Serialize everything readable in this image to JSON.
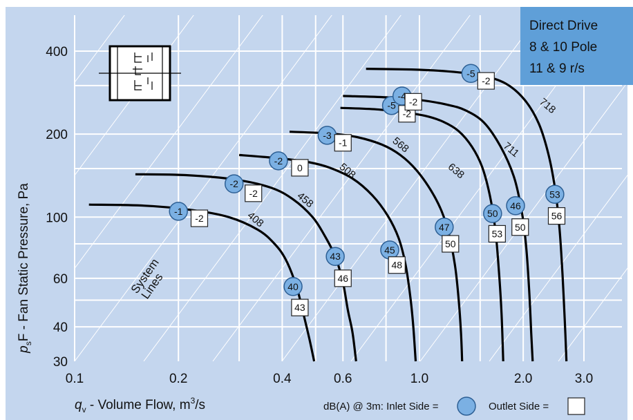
{
  "chart_data": {
    "type": "line",
    "title_lines": [
      "Direct Drive",
      "8 & 10 Pole",
      "11 & 9  r/s"
    ],
    "xlabel": {
      "base": "q",
      "sub": "v",
      "text": " - Volume Flow, m",
      "sup": "3",
      "tail": "/s"
    },
    "ylabel": {
      "base": "p",
      "sub": "s",
      "text": "F - Fan Static Pressure, Pa"
    },
    "x_scale": "log",
    "y_scale": "log",
    "xlim": [
      0.1,
      3.0
    ],
    "ylim": [
      30,
      400
    ],
    "x_ticks": [
      {
        "v": 0.1,
        "label": "0.1"
      },
      {
        "v": 0.2,
        "label": "0.2"
      },
      {
        "v": 0.4,
        "label": "0.4"
      },
      {
        "v": 0.6,
        "label": "0.6"
      },
      {
        "v": 1.0,
        "label": "1.0"
      },
      {
        "v": 2.0,
        "label": "2.0"
      },
      {
        "v": 3.0,
        "label": "3.0"
      }
    ],
    "y_ticks": [
      {
        "v": 30,
        "label": "30"
      },
      {
        "v": 40,
        "label": "40"
      },
      {
        "v": 60,
        "label": "60"
      },
      {
        "v": 100,
        "label": "100"
      },
      {
        "v": 200,
        "label": "200"
      },
      {
        "v": 400,
        "label": "400"
      }
    ],
    "x_grid": [
      0.2,
      0.3,
      0.4,
      0.5,
      0.6,
      0.8,
      1.0,
      1.5,
      2.0,
      3.0
    ],
    "y_grid": [
      40,
      50,
      60,
      80,
      100,
      150,
      200,
      300,
      400
    ],
    "system_lines_label": [
      "System",
      "Lines"
    ],
    "series": [
      {
        "label": "408",
        "label_at": [
          0.33,
          96
        ],
        "points": [
          [
            0.11,
            111
          ],
          [
            0.16,
            110
          ],
          [
            0.22,
            106
          ],
          [
            0.28,
            100
          ],
          [
            0.34,
            90
          ],
          [
            0.38,
            80
          ],
          [
            0.41,
            70
          ],
          [
            0.44,
            56
          ],
          [
            0.46,
            45
          ],
          [
            0.48,
            36
          ],
          [
            0.495,
            30
          ]
        ],
        "inlet": [
          {
            "x": 0.2,
            "y": 105,
            "v": "-1"
          },
          {
            "x": 0.43,
            "y": 56,
            "v": "40"
          }
        ],
        "outlet": [
          {
            "x": 0.23,
            "y": 99,
            "v": "-2"
          },
          {
            "x": 0.45,
            "y": 47,
            "v": "43"
          }
        ]
      },
      {
        "label": "458",
        "label_at": [
          0.46,
          113
        ],
        "points": [
          [
            0.15,
            143
          ],
          [
            0.21,
            142
          ],
          [
            0.29,
            137
          ],
          [
            0.37,
            128
          ],
          [
            0.43,
            116
          ],
          [
            0.49,
            100
          ],
          [
            0.53,
            86
          ],
          [
            0.57,
            72
          ],
          [
            0.6,
            58
          ],
          [
            0.62,
            46
          ],
          [
            0.64,
            38
          ],
          [
            0.655,
            30
          ]
        ],
        "inlet": [
          {
            "x": 0.29,
            "y": 132,
            "v": "-2"
          },
          {
            "x": 0.57,
            "y": 72,
            "v": "43"
          }
        ],
        "outlet": [
          {
            "x": 0.33,
            "y": 122,
            "v": "-2"
          },
          {
            "x": 0.6,
            "y": 60,
            "v": "46"
          }
        ]
      },
      {
        "label": "508",
        "label_at": [
          0.61,
          144
        ],
        "points": [
          [
            0.3,
            168
          ],
          [
            0.4,
            163
          ],
          [
            0.48,
            158
          ],
          [
            0.55,
            151
          ],
          [
            0.64,
            138
          ],
          [
            0.73,
            120
          ],
          [
            0.81,
            101
          ],
          [
            0.87,
            84
          ],
          [
            0.91,
            68
          ],
          [
            0.94,
            52
          ],
          [
            0.96,
            40
          ],
          [
            0.975,
            30
          ]
        ],
        "inlet": [
          {
            "x": 0.39,
            "y": 160,
            "v": "-2"
          },
          {
            "x": 0.82,
            "y": 76,
            "v": "45"
          }
        ],
        "outlet": [
          {
            "x": 0.45,
            "y": 151,
            "v": "0"
          },
          {
            "x": 0.86,
            "y": 67,
            "v": "48"
          }
        ]
      },
      {
        "label": "568",
        "label_at": [
          0.87,
          179
        ],
        "points": [
          [
            0.42,
            204
          ],
          [
            0.55,
            201
          ],
          [
            0.66,
            195
          ],
          [
            0.78,
            183
          ],
          [
            0.88,
            168
          ],
          [
            0.98,
            148
          ],
          [
            1.08,
            125
          ],
          [
            1.16,
            105
          ],
          [
            1.22,
            86
          ],
          [
            1.27,
            66
          ],
          [
            1.3,
            50
          ],
          [
            1.32,
            38
          ],
          [
            1.33,
            30
          ]
        ],
        "inlet": [
          {
            "x": 0.54,
            "y": 198,
            "v": "-3"
          },
          {
            "x": 1.18,
            "y": 92,
            "v": "47"
          }
        ],
        "outlet": [
          {
            "x": 0.6,
            "y": 186,
            "v": "-1"
          },
          {
            "x": 1.23,
            "y": 80,
            "v": "50"
          }
        ]
      },
      {
        "label": "638",
        "label_at": [
          1.26,
          144
        ],
        "points": [
          [
            0.59,
            249
          ],
          [
            0.75,
            246
          ],
          [
            0.9,
            240
          ],
          [
            1.04,
            233
          ],
          [
            1.17,
            222
          ],
          [
            1.3,
            205
          ],
          [
            1.42,
            180
          ],
          [
            1.52,
            152
          ],
          [
            1.6,
            120
          ],
          [
            1.66,
            90
          ],
          [
            1.7,
            64
          ],
          [
            1.73,
            45
          ],
          [
            1.75,
            30
          ]
        ],
        "inlet": [
          {
            "x": 0.83,
            "y": 254,
            "v": "-5"
          },
          {
            "x": 1.63,
            "y": 103,
            "v": "50"
          }
        ],
        "outlet": [
          {
            "x": 0.92,
            "y": 237,
            "v": "-2"
          },
          {
            "x": 1.68,
            "y": 87,
            "v": "53"
          }
        ]
      },
      {
        "label": "711",
        "label_at": [
          1.82,
          172
        ],
        "points": [
          [
            0.6,
            275
          ],
          [
            0.8,
            272
          ],
          [
            1.0,
            266
          ],
          [
            1.2,
            256
          ],
          [
            1.36,
            244
          ],
          [
            1.54,
            220
          ],
          [
            1.72,
            180
          ],
          [
            1.88,
            140
          ],
          [
            1.98,
            105
          ],
          [
            2.04,
            78
          ],
          [
            2.08,
            55
          ],
          [
            2.11,
            38
          ],
          [
            2.13,
            30
          ]
        ],
        "inlet": [
          {
            "x": 0.89,
            "y": 275,
            "v": "-4"
          },
          {
            "x": 1.9,
            "y": 110,
            "v": "46"
          }
        ],
        "outlet": [
          {
            "x": 0.96,
            "y": 262,
            "v": "-2"
          },
          {
            "x": 1.96,
            "y": 92,
            "v": "50"
          }
        ]
      },
      {
        "label": "718",
        "label_at": [
          2.32,
          248
        ],
        "points": [
          [
            0.7,
            345
          ],
          [
            0.95,
            343
          ],
          [
            1.2,
            338
          ],
          [
            1.5,
            327
          ],
          [
            1.78,
            305
          ],
          [
            2.02,
            266
          ],
          [
            2.22,
            218
          ],
          [
            2.37,
            168
          ],
          [
            2.48,
            124
          ],
          [
            2.55,
            90
          ],
          [
            2.6,
            62
          ],
          [
            2.64,
            42
          ],
          [
            2.67,
            30
          ]
        ],
        "inlet": [
          {
            "x": 1.41,
            "y": 332,
            "v": "-5"
          },
          {
            "x": 2.47,
            "y": 121,
            "v": "53"
          }
        ],
        "outlet": [
          {
            "x": 1.56,
            "y": 312,
            "v": "-2"
          },
          {
            "x": 2.5,
            "y": 101,
            "v": "56"
          }
        ]
      }
    ],
    "legend": {
      "prefix": "dB(A) @ 3m:  Inlet Side = ",
      "outlet_text": "Outlet Side = "
    },
    "colors": {
      "background": "#c4d6ee",
      "grid": "#ffffff",
      "curve": "#000000",
      "inlet_fill": "#7bb0e3",
      "inlet_stroke": "#2d5f94",
      "outlet_fill": "#ffffff",
      "outlet_stroke": "#222222",
      "title_box": "#5f9fd8"
    }
  }
}
